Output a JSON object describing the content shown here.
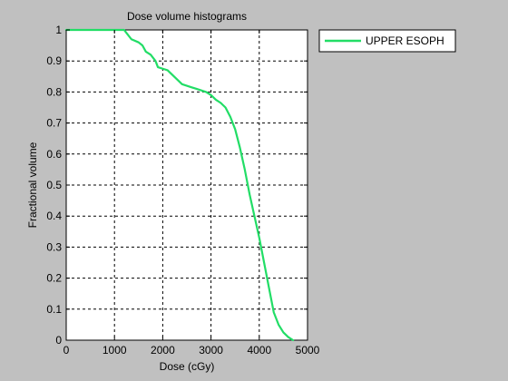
{
  "chart_data": {
    "type": "line",
    "title": "Dose volume histograms",
    "xlabel": "Dose (cGy)",
    "ylabel": "Fractional volume",
    "xlim": [
      0,
      5000
    ],
    "ylim": [
      0,
      1
    ],
    "xticks": [
      0,
      1000,
      2000,
      3000,
      4000,
      5000
    ],
    "yticks": [
      0,
      0.1,
      0.2,
      0.3,
      0.4,
      0.5,
      0.6,
      0.7,
      0.8,
      0.9,
      1
    ],
    "xtick_labels": [
      "0",
      "1000",
      "2000",
      "3000",
      "4000",
      "5000"
    ],
    "ytick_labels": [
      "0",
      "0.1",
      "0.2",
      "0.3",
      "0.4",
      "0.5",
      "0.6",
      "0.7",
      "0.8",
      "0.9",
      "1"
    ],
    "grid": true,
    "legend_position": "outside-top-right",
    "series": [
      {
        "name": "UPPER ESOPH",
        "color": "#22dd66",
        "x": [
          0,
          1200,
          1250,
          1350,
          1500,
          1580,
          1650,
          1750,
          1850,
          1900,
          2000,
          2100,
          2200,
          2300,
          2400,
          2500,
          2600,
          2700,
          2800,
          2900,
          3000,
          3100,
          3200,
          3300,
          3400,
          3500,
          3600,
          3700,
          3800,
          3900,
          4000,
          4100,
          4200,
          4300,
          4400,
          4500,
          4600,
          4700
        ],
        "y": [
          1.0,
          1.0,
          0.99,
          0.97,
          0.96,
          0.95,
          0.93,
          0.92,
          0.9,
          0.88,
          0.875,
          0.87,
          0.855,
          0.84,
          0.825,
          0.82,
          0.815,
          0.81,
          0.805,
          0.8,
          0.79,
          0.775,
          0.765,
          0.75,
          0.72,
          0.68,
          0.62,
          0.55,
          0.47,
          0.4,
          0.33,
          0.25,
          0.17,
          0.09,
          0.05,
          0.025,
          0.01,
          0.0
        ]
      }
    ]
  }
}
